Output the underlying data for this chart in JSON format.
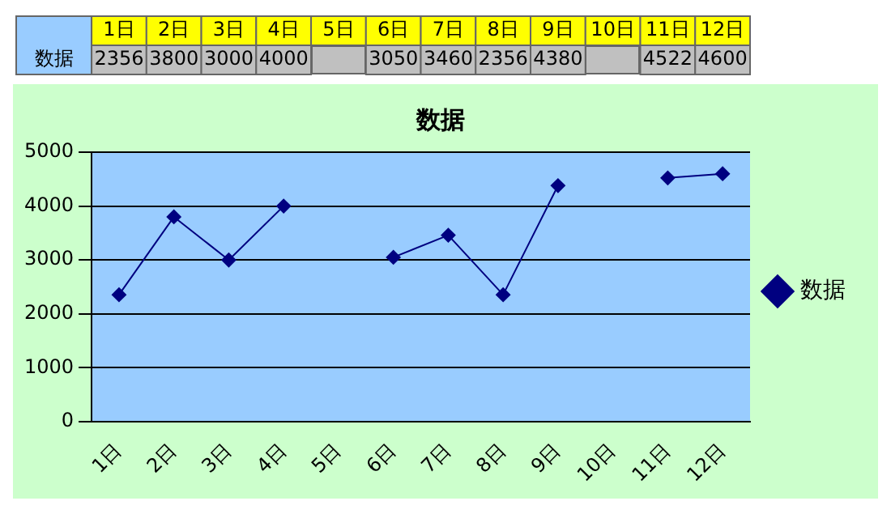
{
  "chart_data": {
    "type": "line",
    "title": "数据",
    "categories": [
      "1日",
      "2日",
      "3日",
      "4日",
      "5日",
      "6日",
      "7日",
      "8日",
      "9日",
      "10日",
      "11日",
      "12日"
    ],
    "series": [
      {
        "name": "数据",
        "color": "#000080",
        "values": [
          2356,
          3800,
          3000,
          4000,
          null,
          3050,
          3460,
          2356,
          4380,
          null,
          4522,
          4600
        ],
        "value_labels": [
          "2356",
          "3800",
          "3000",
          "4000",
          null,
          "3050",
          "3460",
          "2356",
          "4380",
          null,
          "4522",
          "4600"
        ]
      }
    ],
    "ylim": [
      0,
      5000
    ],
    "yticks": [
      0,
      1000,
      2000,
      3000,
      4000,
      5000
    ],
    "grid": "y",
    "legend": "right",
    "marker": "diamond",
    "line_style": "solid"
  }
}
